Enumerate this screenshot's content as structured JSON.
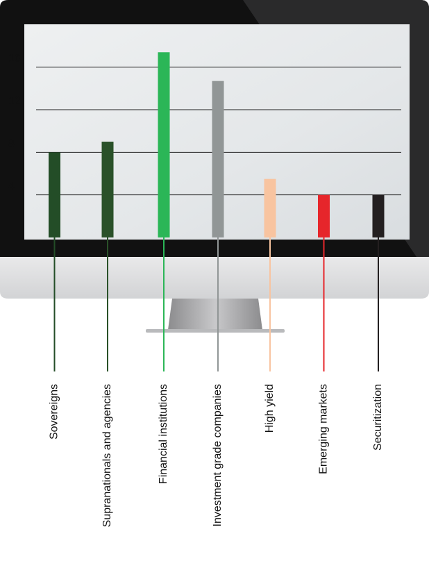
{
  "chart_data": {
    "type": "bar",
    "categories": [
      "Sovereigns",
      "Supranationals and agencies",
      "Financial institutions",
      "Investment grade companies",
      "High yield",
      "Emerging markets",
      "Securitization"
    ],
    "values": [
      8,
      9,
      17.4,
      14.7,
      5.5,
      4,
      4
    ],
    "colors": [
      "#234d27",
      "#2a5129",
      "#2bb657",
      "#919696",
      "#f8c4a0",
      "#e6262b",
      "#231f20"
    ],
    "ylim": [
      0,
      20
    ],
    "yticks": [
      4,
      8,
      12,
      16
    ],
    "grid": true
  }
}
